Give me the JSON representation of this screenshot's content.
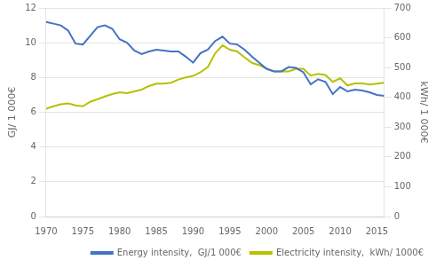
{
  "chart_data": {
    "type": "line",
    "x": [
      1970,
      1971,
      1972,
      1973,
      1974,
      1975,
      1976,
      1977,
      1978,
      1979,
      1980,
      1981,
      1982,
      1983,
      1984,
      1985,
      1986,
      1987,
      1988,
      1989,
      1990,
      1991,
      1992,
      1993,
      1994,
      1995,
      1996,
      1997,
      1998,
      1999,
      2000,
      2001,
      2002,
      2003,
      2004,
      2005,
      2006,
      2007,
      2008,
      2009,
      2010,
      2011,
      2012,
      2013,
      2014,
      2015,
      2016
    ],
    "series": [
      {
        "name": "Energy intensity,  GJ/1 000€",
        "color": "#4472c4",
        "values": [
          11.2,
          11.1,
          11.0,
          10.7,
          9.95,
          9.9,
          10.4,
          10.9,
          11.0,
          10.8,
          10.2,
          10.0,
          9.55,
          9.35,
          9.5,
          9.6,
          9.55,
          9.5,
          9.5,
          9.2,
          8.85,
          9.4,
          9.6,
          10.1,
          10.35,
          9.95,
          9.9,
          9.6,
          9.2,
          8.85,
          8.5,
          8.35,
          8.35,
          8.6,
          8.55,
          8.3,
          7.6,
          7.9,
          7.75,
          7.05,
          7.45,
          7.2,
          7.3,
          7.25,
          7.15,
          7.0,
          6.95
        ]
      },
      {
        "name": "Electricity intensity,  kWh/ 1000€",
        "color": "#b5c200",
        "axis": "y2",
        "values": [
          362,
          370,
          377,
          380,
          373,
          370,
          385,
          394,
          403,
          411,
          417,
          414,
          420,
          426,
          438,
          446,
          446,
          449,
          460,
          467,
          472,
          484,
          502,
          548,
          575,
          560,
          554,
          534,
          516,
          508,
          496,
          487,
          487,
          487,
          496,
          496,
          473,
          479,
          475,
          452,
          464,
          440,
          447,
          447,
          443,
          446,
          449
        ]
      }
    ],
    "ylabel": "GJ/ 1 000€",
    "y2label": "kWh/ 1 000€",
    "xlim": [
      1970,
      2016
    ],
    "xticks": [
      1970,
      1975,
      1980,
      1985,
      1990,
      1995,
      2000,
      2005,
      2010,
      2015
    ],
    "ylim": [
      0,
      12
    ],
    "yticks": [
      0,
      2,
      4,
      6,
      8,
      10,
      12
    ],
    "y2lim": [
      0,
      700
    ],
    "y2ticks": [
      0,
      100,
      200,
      300,
      400,
      500,
      600,
      700
    ],
    "grid": true,
    "legend": "lower right"
  }
}
